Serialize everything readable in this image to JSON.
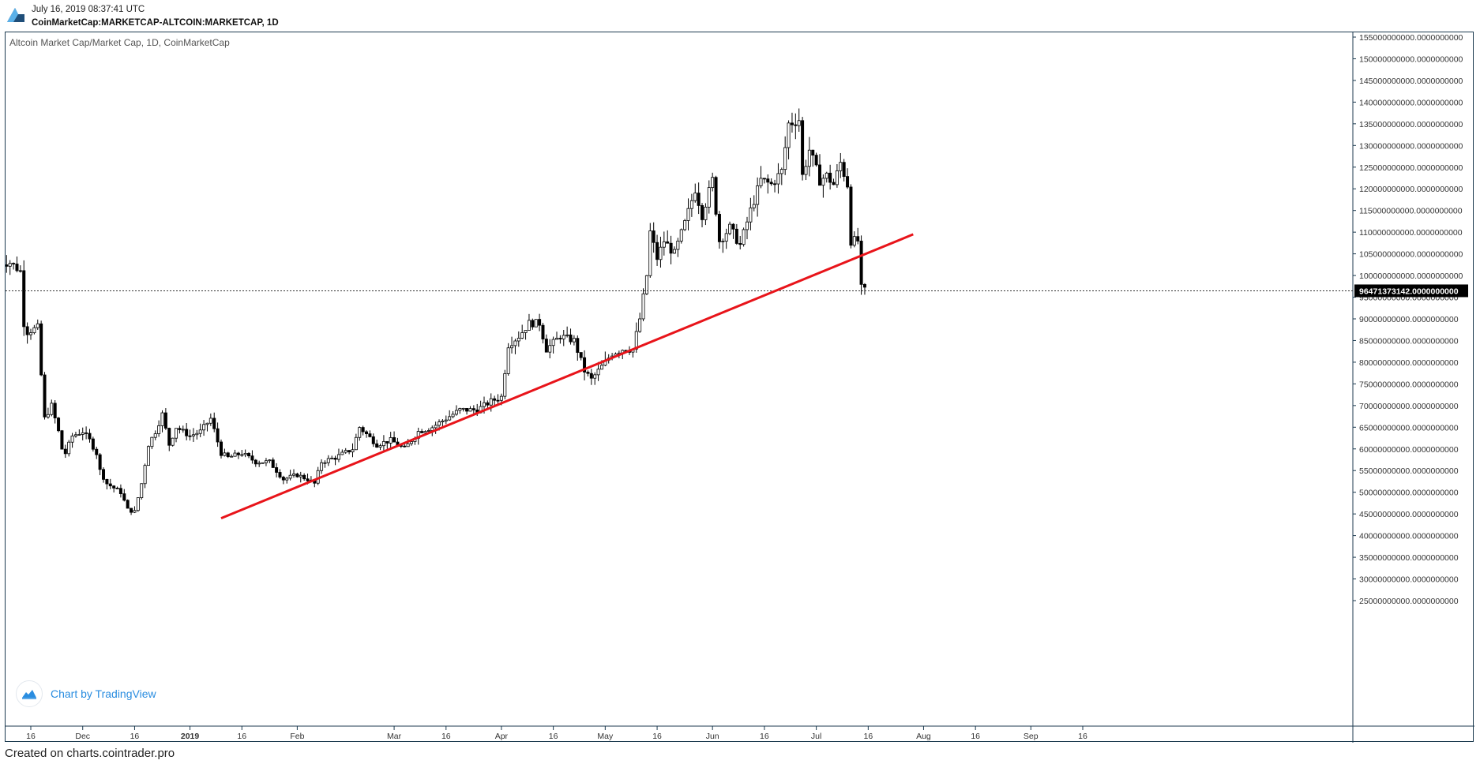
{
  "header": {
    "timestamp": "July 16, 2019 08:37:41 UTC",
    "symbol": "CoinMarketCap:MARKETCAP-ALTCOIN:MARKETCAP, 1D"
  },
  "footer": {
    "credit": "Created on charts.cointrader.pro"
  },
  "badge": {
    "label": "Chart by TradingView"
  },
  "colors": {
    "trendline": "#e8141a",
    "candle_up": "#ffffff",
    "candle_down": "#000000",
    "frame": "#1c3a4f",
    "price_tag_bg": "#000000",
    "link": "#2a8de0"
  },
  "chart_data": {
    "type": "candlestick",
    "title": "Altcoin Market Cap/Market Cap, 1D, CoinMarketCap",
    "ylim": [
      24000000000,
      157000000000
    ],
    "x_ticks": [
      "16",
      "Dec",
      "16",
      "2019",
      "16",
      "Feb",
      "Mar",
      "16",
      "Apr",
      "16",
      "May",
      "16",
      "Jun",
      "16",
      "Jul",
      "16",
      "Aug",
      "16",
      "Sep",
      "16"
    ],
    "x_tick_dates": [
      "2018-11-16",
      "2018-12-01",
      "2018-12-16",
      "2019-01-01",
      "2019-01-16",
      "2019-02-01",
      "2019-03-01",
      "2019-03-16",
      "2019-04-01",
      "2019-04-16",
      "2019-05-01",
      "2019-05-16",
      "2019-06-01",
      "2019-06-16",
      "2019-07-01",
      "2019-07-16",
      "2019-08-01",
      "2019-08-16",
      "2019-09-01",
      "2019-09-16"
    ],
    "y_ticks": [
      "155000000000.0000000000",
      "150000000000.0000000000",
      "145000000000.0000000000",
      "140000000000.0000000000",
      "135000000000.0000000000",
      "130000000000.0000000000",
      "125000000000.0000000000",
      "120000000000.0000000000",
      "115000000000.0000000000",
      "110000000000.0000000000",
      "105000000000.0000000000",
      "100000000000.0000000000",
      "95000000000.0000000000",
      "90000000000.0000000000",
      "85000000000.0000000000",
      "80000000000.0000000000",
      "75000000000.0000000000",
      "70000000000.0000000000",
      "65000000000.0000000000",
      "60000000000.0000000000",
      "55000000000.0000000000",
      "50000000000.0000000000",
      "45000000000.0000000000",
      "40000000000.0000000000",
      "35000000000.0000000000",
      "30000000000.0000000000",
      "25000000000.0000000000"
    ],
    "y_tick_values": [
      155,
      150,
      145,
      140,
      135,
      130,
      125,
      120,
      115,
      110,
      105,
      100,
      95,
      90,
      85,
      80,
      75,
      70,
      65,
      60,
      55,
      50,
      45,
      40,
      35,
      30,
      25
    ],
    "y_unit_multiplier": 1000000000,
    "current_price": {
      "value": 96471373142,
      "label": "96471373142.0000000000"
    },
    "trendline": {
      "start": {
        "date": "2019-01-10",
        "value": 44000000000
      },
      "end": {
        "date": "2019-07-29",
        "value": 109500000000
      }
    },
    "closes": [
      [
        "2018-11-07",
        103
      ],
      [
        "2018-11-10",
        103
      ],
      [
        "2018-11-13",
        101
      ],
      [
        "2018-11-14",
        89
      ],
      [
        "2018-11-15",
        87
      ],
      [
        "2018-11-18",
        88
      ],
      [
        "2018-11-19",
        77
      ],
      [
        "2018-11-20",
        67
      ],
      [
        "2018-11-22",
        70
      ],
      [
        "2018-11-24",
        64
      ],
      [
        "2018-11-25",
        60
      ],
      [
        "2018-11-26",
        59
      ],
      [
        "2018-11-28",
        63
      ],
      [
        "2018-12-01",
        64
      ],
      [
        "2018-12-03",
        62
      ],
      [
        "2018-12-05",
        59
      ],
      [
        "2018-12-06",
        55
      ],
      [
        "2018-12-08",
        52
      ],
      [
        "2018-12-10",
        51
      ],
      [
        "2018-12-12",
        50
      ],
      [
        "2018-12-14",
        46
      ],
      [
        "2018-12-16",
        45.5
      ],
      [
        "2018-12-18",
        52
      ],
      [
        "2018-12-20",
        61
      ],
      [
        "2018-12-22",
        64
      ],
      [
        "2018-12-24",
        68
      ],
      [
        "2018-12-26",
        61
      ],
      [
        "2018-12-28",
        65
      ],
      [
        "2019-01-01",
        63
      ],
      [
        "2019-01-04",
        64
      ],
      [
        "2019-01-07",
        67
      ],
      [
        "2019-01-10",
        59
      ],
      [
        "2019-01-12",
        58
      ],
      [
        "2019-01-16",
        59
      ],
      [
        "2019-01-20",
        57
      ],
      [
        "2019-01-24",
        57
      ],
      [
        "2019-01-28",
        53
      ],
      [
        "2019-02-01",
        54
      ],
      [
        "2019-02-04",
        53
      ],
      [
        "2019-02-06",
        52
      ],
      [
        "2019-02-08",
        57
      ],
      [
        "2019-02-12",
        58
      ],
      [
        "2019-02-17",
        60
      ],
      [
        "2019-02-19",
        65
      ],
      [
        "2019-02-24",
        61
      ],
      [
        "2019-02-28",
        62
      ],
      [
        "2019-03-04",
        60
      ],
      [
        "2019-03-08",
        64
      ],
      [
        "2019-03-12",
        65
      ],
      [
        "2019-03-16",
        67
      ],
      [
        "2019-03-20",
        69
      ],
      [
        "2019-03-25",
        69
      ],
      [
        "2019-03-29",
        71
      ],
      [
        "2019-04-01",
        72
      ],
      [
        "2019-04-03",
        84
      ],
      [
        "2019-04-06",
        86
      ],
      [
        "2019-04-09",
        89
      ],
      [
        "2019-04-12",
        89
      ],
      [
        "2019-04-14",
        83
      ],
      [
        "2019-04-18",
        86
      ],
      [
        "2019-04-22",
        85
      ],
      [
        "2019-04-25",
        78
      ],
      [
        "2019-04-27",
        76
      ],
      [
        "2019-04-30",
        79
      ],
      [
        "2019-05-03",
        82
      ],
      [
        "2019-05-06",
        83
      ],
      [
        "2019-05-09",
        83
      ],
      [
        "2019-05-11",
        90
      ],
      [
        "2019-05-13",
        100
      ],
      [
        "2019-05-14",
        110
      ],
      [
        "2019-05-16",
        104
      ],
      [
        "2019-05-18",
        108
      ],
      [
        "2019-05-21",
        105
      ],
      [
        "2019-05-24",
        112
      ],
      [
        "2019-05-27",
        120
      ],
      [
        "2019-05-29",
        114
      ],
      [
        "2019-06-01",
        122
      ],
      [
        "2019-06-03",
        108
      ],
      [
        "2019-06-06",
        111
      ],
      [
        "2019-06-09",
        107
      ],
      [
        "2019-06-12",
        115
      ],
      [
        "2019-06-15",
        122
      ],
      [
        "2019-06-18",
        121
      ],
      [
        "2019-06-21",
        124
      ],
      [
        "2019-06-23",
        135
      ],
      [
        "2019-06-26",
        136
      ],
      [
        "2019-06-27",
        123
      ],
      [
        "2019-06-29",
        129
      ],
      [
        "2019-07-02",
        122
      ],
      [
        "2019-07-04",
        123
      ],
      [
        "2019-07-06",
        121
      ],
      [
        "2019-07-08",
        126
      ],
      [
        "2019-07-10",
        121
      ],
      [
        "2019-07-11",
        108
      ],
      [
        "2019-07-13",
        108
      ],
      [
        "2019-07-14",
        97
      ],
      [
        "2019-07-15",
        96.5
      ]
    ]
  }
}
